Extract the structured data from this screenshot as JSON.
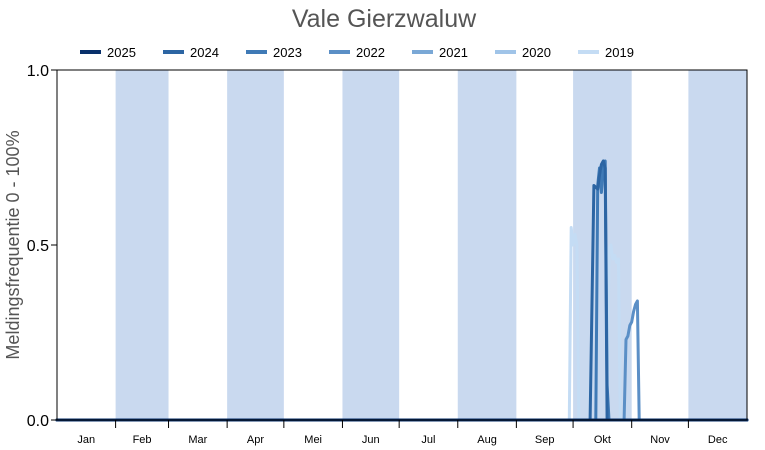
{
  "chart_data": {
    "type": "line",
    "title": "Vale Gierzwaluw",
    "ylabel": "Meldingsfrequentie 0 - 100%",
    "xlabel": "",
    "ylim": [
      0,
      1
    ],
    "yticks": [
      "0.0",
      "0.5",
      "1.0"
    ],
    "months": [
      "Jan",
      "Feb",
      "Mar",
      "Apr",
      "Mei",
      "Jun",
      "Jul",
      "Aug",
      "Sep",
      "Okt",
      "Nov",
      "Dec"
    ],
    "shaded_months": [
      "Feb",
      "Apr",
      "Jun",
      "Aug",
      "Okt",
      "Dec"
    ],
    "legend_position": "top",
    "shade_color": "#c9d9ef",
    "series": [
      {
        "name": "2025",
        "color": "#08306b",
        "points": [
          [
            0,
            0
          ],
          [
            365,
            0
          ]
        ]
      },
      {
        "name": "2024",
        "color": "#2c65a3",
        "points": [
          [
            0,
            0
          ],
          [
            282,
            0
          ],
          [
            284,
            0.67
          ],
          [
            286,
            0.66
          ],
          [
            287,
            0.7
          ],
          [
            288,
            0.73
          ],
          [
            289,
            0.74
          ],
          [
            290,
            0.72
          ],
          [
            291,
            0
          ],
          [
            365,
            0
          ]
        ]
      },
      {
        "name": "2023",
        "color": "#3f7ab6",
        "points": [
          [
            0,
            0
          ],
          [
            285,
            0
          ],
          [
            286,
            0.67
          ],
          [
            287,
            0.72
          ],
          [
            288,
            0.65
          ],
          [
            289,
            0.72
          ],
          [
            290,
            0.74
          ],
          [
            291,
            0.1
          ],
          [
            292,
            0
          ],
          [
            365,
            0
          ]
        ]
      },
      {
        "name": "2022",
        "color": "#5b8fc6",
        "points": [
          [
            0,
            0
          ],
          [
            300,
            0
          ],
          [
            301,
            0.23
          ],
          [
            302,
            0.24
          ],
          [
            303,
            0.27
          ],
          [
            304,
            0.28
          ],
          [
            305,
            0.31
          ],
          [
            306,
            0.33
          ],
          [
            307,
            0.34
          ],
          [
            308,
            0
          ],
          [
            365,
            0
          ]
        ]
      },
      {
        "name": "2021",
        "color": "#7aa8d6",
        "points": [
          [
            0,
            0
          ],
          [
            365,
            0
          ]
        ]
      },
      {
        "name": "2020",
        "color": "#a0c4e8",
        "points": [
          [
            0,
            0
          ],
          [
            365,
            0
          ]
        ]
      },
      {
        "name": "2019",
        "color": "#c4dcf4",
        "points": [
          [
            0,
            0
          ],
          [
            271,
            0
          ],
          [
            272,
            0.55
          ],
          [
            273,
            0.5
          ],
          [
            274,
            0.53
          ],
          [
            275,
            0.5
          ],
          [
            276,
            0
          ],
          [
            291,
            0
          ],
          [
            292,
            0.49
          ],
          [
            293,
            0.5
          ],
          [
            294,
            0.46
          ],
          [
            295,
            0.47
          ],
          [
            296,
            0.45
          ],
          [
            297,
            0.46
          ],
          [
            298,
            0
          ],
          [
            365,
            0
          ]
        ]
      }
    ]
  }
}
